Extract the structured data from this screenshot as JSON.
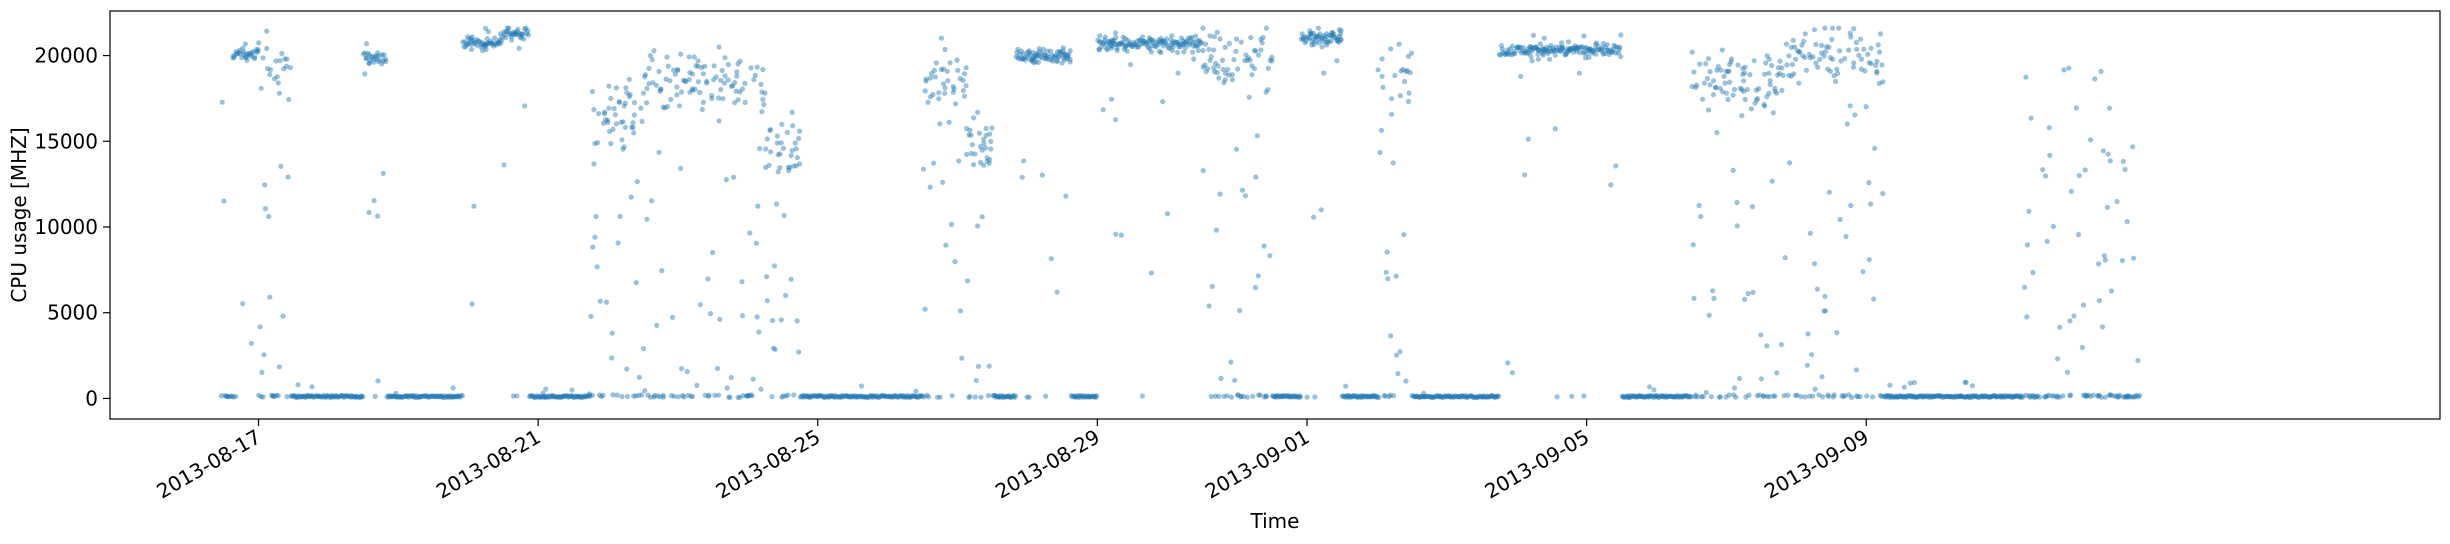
{
  "chart_data": {
    "type": "scatter",
    "title": "",
    "xlabel": "Time",
    "ylabel": "CPU usage [MHZ]",
    "xlim": [
      "2013-08-14T21:00",
      "2013-09-17T05:00"
    ],
    "ylim": [
      -1200,
      22600
    ],
    "grid": false,
    "legend": "none",
    "marker_color": "#1f77b4",
    "marker_opacity": 0.45,
    "x_ticks": [
      {
        "date": "2013-08-17",
        "label": "2013-08-17"
      },
      {
        "date": "2013-08-21",
        "label": "2013-08-21"
      },
      {
        "date": "2013-08-25",
        "label": "2013-08-25"
      },
      {
        "date": "2013-08-29",
        "label": "2013-08-29"
      },
      {
        "date": "2013-09-01",
        "label": "2013-09-01"
      },
      {
        "date": "2013-09-05",
        "label": "2013-09-05"
      },
      {
        "date": "2013-09-09",
        "label": "2013-09-09"
      }
    ],
    "y_ticks": [
      {
        "value": 0,
        "label": "0"
      },
      {
        "value": 5000,
        "label": "5000"
      },
      {
        "value": 10000,
        "label": "10000"
      },
      {
        "value": 15000,
        "label": "15000"
      },
      {
        "value": 20000,
        "label": "20000"
      }
    ],
    "data_range": [
      "2013-08-16T11:00",
      "2013-09-12T22:00"
    ],
    "segments": [
      {
        "start": "2013-08-16T11:00",
        "end": "2013-08-16T15:00",
        "mode": "sparse"
      },
      {
        "start": "2013-08-16T15:00",
        "end": "2013-08-17T00:00",
        "mode": "high",
        "level": 20100
      },
      {
        "start": "2013-08-17T00:00",
        "end": "2013-08-17T12:00",
        "mode": "mixed",
        "level": 19800
      },
      {
        "start": "2013-08-17T12:00",
        "end": "2013-08-18T12:00",
        "mode": "low"
      },
      {
        "start": "2013-08-18T12:00",
        "end": "2013-08-18T20:00",
        "mode": "high",
        "level": 19900
      },
      {
        "start": "2013-08-18T20:00",
        "end": "2013-08-19T22:00",
        "mode": "low"
      },
      {
        "start": "2013-08-19T22:00",
        "end": "2013-08-20T12:00",
        "mode": "high",
        "level": 20800
      },
      {
        "start": "2013-08-20T12:00",
        "end": "2013-08-20T21:00",
        "mode": "high",
        "level": 21300
      },
      {
        "start": "2013-08-20T21:00",
        "end": "2013-08-21T18:00",
        "mode": "low"
      },
      {
        "start": "2013-08-21T18:00",
        "end": "2013-08-22T12:00",
        "mode": "mixed",
        "level": 16500
      },
      {
        "start": "2013-08-22T12:00",
        "end": "2013-08-23T12:00",
        "mode": "mixed",
        "level": 18300
      },
      {
        "start": "2013-08-23T12:00",
        "end": "2013-08-24T06:00",
        "mode": "mixed",
        "level": 18200
      },
      {
        "start": "2013-08-24T06:00",
        "end": "2013-08-24T18:00",
        "mode": "mixed",
        "level": 14500
      },
      {
        "start": "2013-08-24T18:00",
        "end": "2013-08-26T12:00",
        "mode": "low"
      },
      {
        "start": "2013-08-26T12:00",
        "end": "2013-08-27T03:00",
        "mode": "mixed",
        "level": 18500
      },
      {
        "start": "2013-08-27T03:00",
        "end": "2013-08-27T12:00",
        "mode": "mixed",
        "level": 15200
      },
      {
        "start": "2013-08-27T12:00",
        "end": "2013-08-27T20:00",
        "mode": "low"
      },
      {
        "start": "2013-08-27T20:00",
        "end": "2013-08-28T15:00",
        "mode": "high",
        "level": 20000
      },
      {
        "start": "2013-08-28T15:00",
        "end": "2013-08-29T00:00",
        "mode": "low"
      },
      {
        "start": "2013-08-29T00:00",
        "end": "2013-08-30T12:00",
        "mode": "high",
        "level": 20700
      },
      {
        "start": "2013-08-30T12:00",
        "end": "2013-08-31T00:00",
        "mode": "mixed",
        "level": 19800
      },
      {
        "start": "2013-08-31T00:00",
        "end": "2013-08-31T12:00",
        "mode": "mixed",
        "level": 20200
      },
      {
        "start": "2013-08-31T12:00",
        "end": "2013-08-31T22:00",
        "mode": "low"
      },
      {
        "start": "2013-08-31T22:00",
        "end": "2013-09-01T12:00",
        "mode": "high",
        "level": 21000
      },
      {
        "start": "2013-09-01T12:00",
        "end": "2013-09-02T00:00",
        "mode": "low"
      },
      {
        "start": "2013-09-02T00:00",
        "end": "2013-09-02T12:00",
        "mode": "mixed",
        "level": 18900
      },
      {
        "start": "2013-09-02T12:00",
        "end": "2013-09-03T18:00",
        "mode": "low"
      },
      {
        "start": "2013-09-03T18:00",
        "end": "2013-09-05T12:00",
        "mode": "high",
        "level": 20300
      },
      {
        "start": "2013-09-05T12:00",
        "end": "2013-09-06T12:00",
        "mode": "low"
      },
      {
        "start": "2013-09-06T12:00",
        "end": "2013-09-07T18:00",
        "mode": "mixed",
        "level": 18500
      },
      {
        "start": "2013-09-07T18:00",
        "end": "2013-09-09T06:00",
        "mode": "mixed",
        "level": 19900
      },
      {
        "start": "2013-09-09T06:00",
        "end": "2013-09-11T06:00",
        "mode": "low"
      },
      {
        "start": "2013-09-11T06:00",
        "end": "2013-09-12T22:00",
        "mode": "sparse"
      }
    ]
  }
}
